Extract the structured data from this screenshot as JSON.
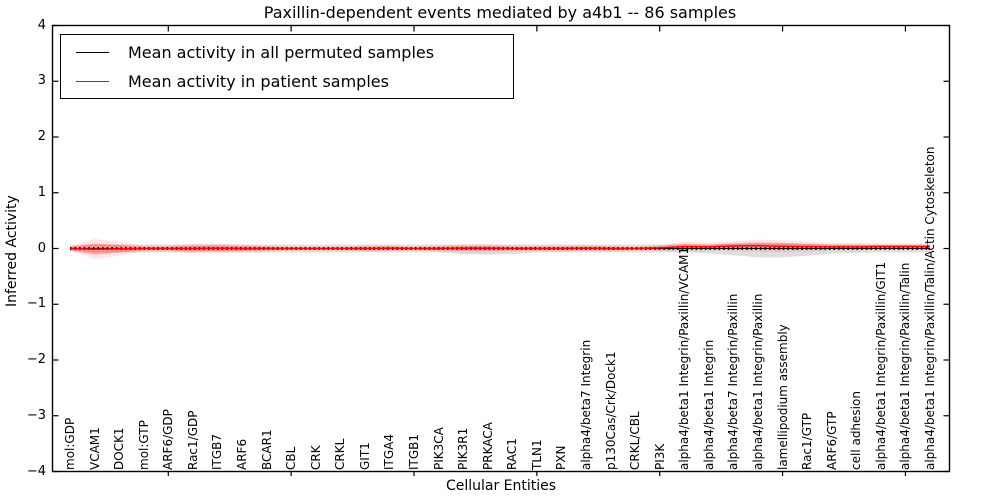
{
  "chart_data": {
    "type": "line",
    "title": "Paxillin-dependent events mediated by a4b1 -- 86 samples",
    "xlabel": "Cellular Entities",
    "ylabel": "Inferred Activity",
    "ylim": [
      -4,
      4
    ],
    "yticks": [
      -4,
      -3,
      -2,
      -1,
      0,
      1,
      2,
      3,
      4
    ],
    "grid": false,
    "legend_position": "upper left",
    "x_major_tick_indices": [
      4,
      9,
      14,
      19,
      24,
      29,
      34
    ],
    "categories": [
      "mol:GDP",
      "VCAM1",
      "DOCK1",
      "mol:GTP",
      "ARF6/GDP",
      "Rac1/GDP",
      "ITGB7",
      "ARF6",
      "BCAR1",
      "CBL",
      "CRK",
      "CRKL",
      "GIT1",
      "ITGA4",
      "ITGB1",
      "PIK3CA",
      "PIK3R1",
      "PRKACA",
      "RAC1",
      "TLN1",
      "PXN",
      "alpha4/beta7 Integrin",
      "p130Cas/Crk/Dock1",
      "CRKL/CBL",
      "PI3K",
      "alpha4/beta1 Integrin/Paxillin/VCAM1",
      "alpha4/beta1 Integrin",
      "alpha4/beta7 Integrin/Paxillin",
      "alpha4/beta1 Integrin/Paxillin",
      "lamellipodium assembly",
      "Rac1/GTP",
      "ARF6/GTP",
      "cell adhesion",
      "alpha4/beta1 Integrin/Paxillin/GIT1",
      "alpha4/beta1 Integrin/Paxillin/Talin",
      "alpha4/beta1 Integrin/Paxillin/Talin/Actin Cytoskeleton"
    ],
    "series": [
      {
        "name": "Mean activity in all permuted samples",
        "color": "#000000",
        "values": [
          0,
          0,
          0,
          0,
          0,
          0,
          0,
          0,
          0,
          0,
          0,
          0,
          0,
          0,
          0,
          0,
          0,
          0,
          0,
          0,
          0,
          0,
          0,
          0,
          0,
          0,
          0,
          0,
          0,
          0,
          0,
          0,
          0,
          0,
          0,
          0
        ]
      },
      {
        "name": "Mean activity in patient samples",
        "color": "#ff0000",
        "values": [
          0,
          -0.01,
          -0.005,
          0,
          0,
          0,
          0.005,
          0,
          0,
          0,
          0,
          0,
          0,
          0.005,
          0,
          0,
          0.005,
          0.005,
          0,
          0,
          0,
          0.005,
          0,
          0,
          0.01,
          0.035,
          0.03,
          0.045,
          0.05,
          0.04,
          0.035,
          0.03,
          0.03,
          0.035,
          0.035,
          0.035
        ]
      }
    ],
    "bands": [
      {
        "name": "permuted samples std band",
        "color": "rgba(0,0,0,0.13)",
        "upper_halfwidth": [
          0.06,
          0.07,
          0.07,
          0.07,
          0.07,
          0.07,
          0.07,
          0.07,
          0.07,
          0.07,
          0.07,
          0.07,
          0.07,
          0.07,
          0.07,
          0.07,
          0.07,
          0.07,
          0.07,
          0.07,
          0.07,
          0.07,
          0.07,
          0.07,
          0.07,
          0.07,
          0.07,
          0.08,
          0.09,
          0.09,
          0.08,
          0.07,
          0.07,
          0.07,
          0.07,
          0.07
        ],
        "lower_halfwidth": [
          0.06,
          0.07,
          0.07,
          0.07,
          0.07,
          0.07,
          0.07,
          0.07,
          0.07,
          0.07,
          0.07,
          0.07,
          0.07,
          0.07,
          0.07,
          0.07,
          0.1,
          0.11,
          0.1,
          0.07,
          0.07,
          0.07,
          0.07,
          0.07,
          0.07,
          0.07,
          0.09,
          0.12,
          0.16,
          0.16,
          0.13,
          0.09,
          0.08,
          0.07,
          0.07,
          0.07
        ]
      },
      {
        "name": "patient samples std band",
        "color": "rgba(255,0,0,0.26)",
        "halo_color": "rgba(255,0,0,0.10)",
        "halo_scale": 1.8,
        "halfwidth": [
          0.02,
          0.1,
          0.07,
          0.03,
          0.03,
          0.05,
          0.05,
          0.04,
          0.03,
          0.02,
          0.02,
          0.02,
          0.03,
          0.03,
          0.02,
          0.03,
          0.04,
          0.04,
          0.03,
          0.03,
          0.03,
          0.03,
          0.03,
          0.02,
          0.03,
          0.05,
          0.04,
          0.05,
          0.06,
          0.06,
          0.05,
          0.04,
          0.04,
          0.03,
          0.03,
          0.03
        ]
      }
    ]
  }
}
